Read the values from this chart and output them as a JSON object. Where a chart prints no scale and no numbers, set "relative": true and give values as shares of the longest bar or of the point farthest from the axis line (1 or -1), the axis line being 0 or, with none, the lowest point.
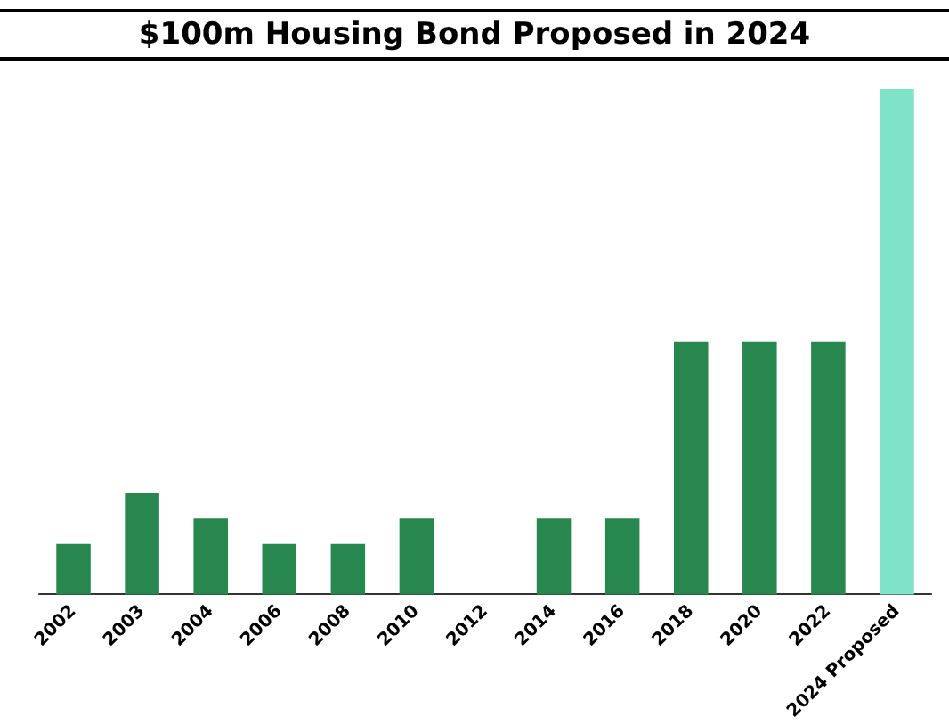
{
  "chart_data": {
    "type": "bar",
    "title": "$100m Housing Bond Proposed in 2024",
    "relative": true,
    "categories": [
      "2002",
      "2003",
      "2004",
      "2006",
      "2008",
      "2010",
      "2012",
      "2014",
      "2016",
      "2018",
      "2020",
      "2022",
      "2024 Proposed"
    ],
    "values": [
      0.1,
      0.2,
      0.15,
      0.1,
      0.1,
      0.15,
      0,
      0.15,
      0.15,
      0.5,
      0.5,
      0.5,
      1
    ],
    "colors": [
      "#28864f",
      "#28864f",
      "#28864f",
      "#28864f",
      "#28864f",
      "#28864f",
      "#28864f",
      "#28864f",
      "#28864f",
      "#28864f",
      "#28864f",
      "#28864f",
      "#7ee3c8"
    ],
    "data_labels": false
  }
}
